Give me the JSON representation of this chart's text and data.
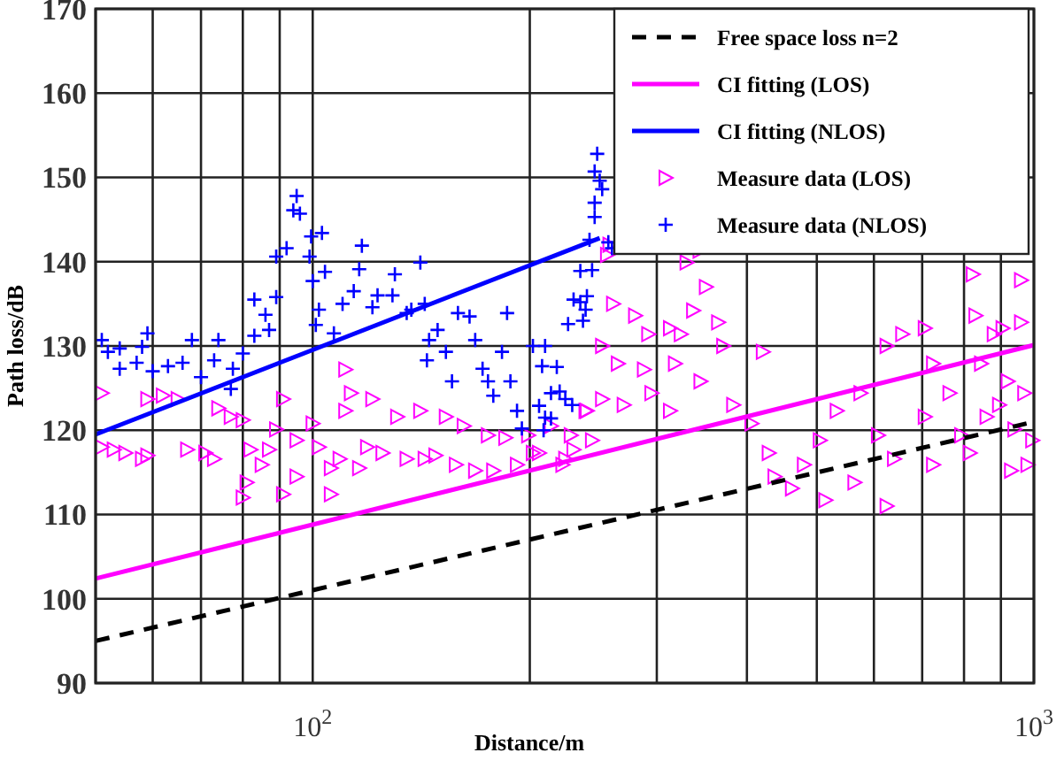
{
  "chart_data": {
    "type": "scatter",
    "xlabel": "Distance/m",
    "ylabel": "Path loss/dB",
    "log": "x",
    "grid": true,
    "legend": "top right",
    "xlim": [
      50,
      1000
    ],
    "ylim": [
      90,
      170
    ],
    "xticks": [
      {
        "value": 50,
        "label": null
      },
      {
        "value": 60,
        "label": null
      },
      {
        "value": 70,
        "label": null
      },
      {
        "value": 80,
        "label": null
      },
      {
        "value": 90,
        "label": null
      },
      {
        "value": 100,
        "label": "10$^{2}$"
      },
      {
        "value": 200,
        "label": null
      },
      {
        "value": 300,
        "label": null
      },
      {
        "value": 400,
        "label": null
      },
      {
        "value": 500,
        "label": null
      },
      {
        "value": 600,
        "label": null
      },
      {
        "value": 700,
        "label": null
      },
      {
        "value": 800,
        "label": null
      },
      {
        "value": 900,
        "label": null
      },
      {
        "value": 1000,
        "label": "10$^{3}$"
      }
    ],
    "yticks": [
      90,
      100,
      110,
      120,
      130,
      140,
      150,
      160,
      170
    ],
    "series": [
      {
        "name": "Free space loss  n=2",
        "type": "line",
        "color": "#000000",
        "line_style": "dashed",
        "x": [
          50,
          1000
        ],
        "values": [
          95,
          121
        ]
      },
      {
        "name": "CI fitting (LOS)",
        "type": "line",
        "color": "#ff00ff",
        "line_style": "solid",
        "x": [
          50,
          1000
        ],
        "values": [
          102.4,
          130.1
        ]
      },
      {
        "name": "CI fitting (NLOS)",
        "type": "line",
        "color": "#0000ff",
        "line_style": "solid",
        "x": [
          50,
          250
        ],
        "values": [
          119.5,
          142.8
        ]
      },
      {
        "name": "Measure data (LOS)",
        "color": "#ff00ff",
        "marker": "triangle",
        "x": [
          51,
          51,
          53,
          55,
          58,
          59,
          59,
          62,
          65,
          67,
          71,
          73,
          74,
          77,
          80,
          82,
          81,
          80,
          85,
          87,
          89,
          91,
          91,
          95,
          95,
          100,
          102,
          106,
          106,
          109,
          111,
          113,
          111,
          116,
          119,
          121,
          125,
          131,
          135,
          141,
          143,
          148,
          153,
          158,
          162,
          168,
          175,
          178,
          185,
          192,
          199,
          206,
          214,
          222,
          230,
          239,
          244,
          202,
          224,
          228,
          240,
          252,
          252,
          261,
          258,
          265,
          270,
          280,
          288,
          292,
          295,
          256,
          330,
          344,
          351,
          337,
          324,
          313,
          365,
          371,
          318,
          345,
          313,
          383,
          421,
          406,
          429,
          437,
          462,
          480,
          505,
          514,
          533,
          564,
          575,
          608,
          625,
          625,
          640,
          657,
          706,
          706,
          725,
          725,
          764,
          793,
          823,
          830,
          845,
          860,
          880,
          905,
          920,
          940,
          960,
          960,
          970,
          980,
          995,
          930,
          895,
          815
        ],
        "values": [
          124.4,
          118,
          117.7,
          117.3,
          116.6,
          117,
          123.7,
          124.1,
          123.7,
          117.7,
          117.3,
          116.6,
          122.6,
          121.6,
          121.2,
          117.7,
          113.8,
          112,
          115.9,
          117.7,
          120.1,
          123.7,
          112.4,
          114.5,
          118.8,
          120.8,
          118,
          115.5,
          112.4,
          116.6,
          127.2,
          124.4,
          122.3,
          115.5,
          118,
          123.7,
          117.3,
          121.6,
          116.6,
          122.3,
          116.6,
          117,
          121.6,
          115.9,
          120.5,
          115.2,
          119.4,
          115.2,
          119.1,
          115.9,
          119.4,
          117.3,
          120.5,
          115.9,
          117.7,
          122.3,
          118.8,
          117.3,
          116.6,
          119.4,
          122.3,
          123.7,
          130,
          135,
          142,
          127.9,
          123,
          133.6,
          127.2,
          131.4,
          124.4,
          140.8,
          139.9,
          141.3,
          137,
          134.2,
          131.4,
          132.1,
          132.8,
          130,
          127.9,
          125.8,
          122.3,
          123,
          129.3,
          120.8,
          117.3,
          114.5,
          113.1,
          115.9,
          118.8,
          111.7,
          122.3,
          113.8,
          124.4,
          119.4,
          111,
          130,
          116.6,
          131.4,
          132.1,
          121.6,
          127.9,
          115.9,
          124.4,
          119.4,
          138.5,
          133.6,
          127.9,
          121.6,
          131.4,
          132.1,
          125.8,
          120.1,
          137.8,
          132.8,
          124.4,
          115.9,
          118.8,
          115.2,
          123,
          117.3
        ]
      },
      {
        "name": "Measure data (NLOS)",
        "color": "#0000ff",
        "marker": "cross",
        "x": [
          51,
          52,
          54,
          58,
          59,
          54,
          57,
          60,
          63,
          66,
          68,
          74,
          73,
          70,
          77,
          77.5,
          80,
          83,
          83,
          86,
          87,
          89,
          89,
          92,
          94,
          95,
          96,
          99,
          99.5,
          103,
          100,
          104,
          101,
          102,
          107,
          110,
          114,
          116,
          117,
          121,
          123,
          129,
          130,
          135,
          137,
          141,
          143,
          145,
          144,
          149,
          153,
          156,
          159,
          165,
          168,
          172,
          175,
          178,
          183,
          186,
          188,
          192,
          195,
          202,
          206,
          208,
          214,
          220,
          226,
          230,
          235,
          239,
          246,
          246,
          248,
          246,
          250,
          252,
          257,
          260,
          242,
          244,
          240,
          235,
          237,
          210,
          218,
          214,
          224,
          229,
          210,
          209
        ],
        "values": [
          130.7,
          129.3,
          129.7,
          129.9,
          131.5,
          127.3,
          128,
          127,
          127.6,
          128,
          130.7,
          130.7,
          128.3,
          126.3,
          124.9,
          127.3,
          129.1,
          131.2,
          135.5,
          133.7,
          131.9,
          135.8,
          140.6,
          141.6,
          146.1,
          147.8,
          145.7,
          140.6,
          143,
          143.4,
          137.7,
          138.8,
          132.5,
          134.3,
          131.5,
          135,
          136.5,
          139.1,
          141.9,
          134.6,
          136,
          136,
          138.5,
          133.9,
          134.3,
          139.9,
          135,
          130.7,
          128.3,
          131.9,
          129.3,
          125.8,
          133.9,
          133.5,
          130.7,
          127.3,
          125.8,
          124.1,
          129.3,
          133.9,
          125.8,
          122.3,
          120.2,
          130,
          122.9,
          127.6,
          121.4,
          124.6,
          132.6,
          135.5,
          138.9,
          134.3,
          147,
          145.3,
          152.8,
          150.7,
          149.6,
          148.6,
          142.3,
          141.6,
          142.6,
          139,
          135.9,
          135.2,
          133,
          130,
          127.5,
          124.4,
          123.7,
          123,
          121.5,
          120
        ]
      }
    ]
  }
}
